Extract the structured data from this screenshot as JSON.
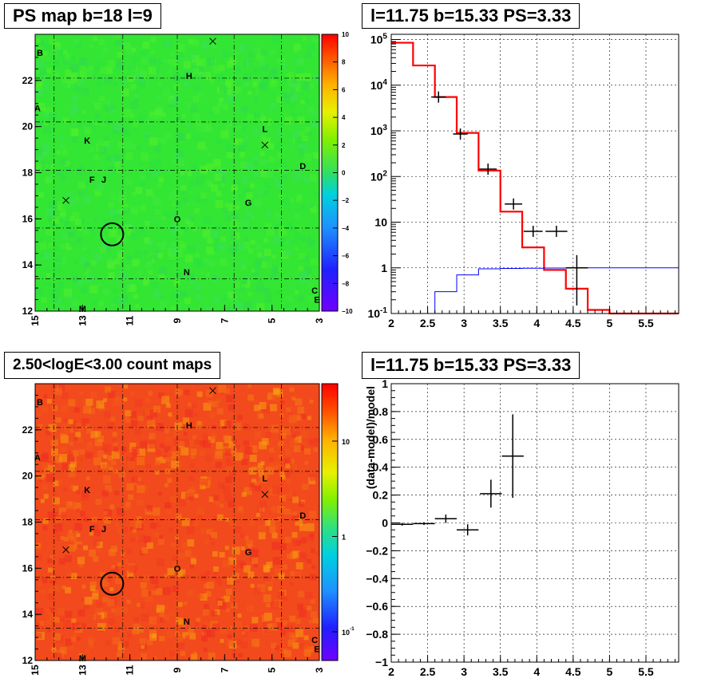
{
  "titles": {
    "ps_map": "PS map b=18 l=9",
    "spectrum": "l=11.75 b=15.33 PS=3.33",
    "count_map": "2.50<logE<3.00 count maps",
    "residual": "l=11.75 b=15.33 PS=3.33"
  },
  "colors": {
    "data": "#000000",
    "model_red": "#ff0000",
    "model_blue": "#0000ff",
    "ps_map_fill": "#33e633",
    "count_map_fill": "#f24a1c"
  },
  "chart_data": [
    {
      "id": "ps_map",
      "type": "heatmap",
      "title": "PS map b=18 l=9",
      "x_ticks": [
        "15",
        "13",
        "11",
        "9",
        "7",
        "5",
        "3"
      ],
      "y_ticks": [
        "12",
        "14",
        "16",
        "18",
        "20",
        "22"
      ],
      "xlim": [
        15,
        3
      ],
      "ylim": [
        12,
        24
      ],
      "colorbar": {
        "scale": "linear",
        "range": [
          -10,
          10
        ],
        "ticks": [
          "10",
          "8",
          "6",
          "4",
          "2",
          "0",
          "−2",
          "−4",
          "−6",
          "−8",
          "−10"
        ]
      },
      "markers": [
        {
          "label": "B",
          "l": 14.8,
          "b": 23.2
        },
        {
          "label": "H",
          "l": 8.5,
          "b": 22.2
        },
        {
          "label": "A",
          "l": 14.9,
          "b": 20.8
        },
        {
          "label": "K",
          "l": 12.8,
          "b": 19.4
        },
        {
          "label": "L",
          "l": 5.3,
          "b": 19.9
        },
        {
          "label": "D",
          "l": 3.7,
          "b": 18.3
        },
        {
          "label": "F",
          "l": 12.6,
          "b": 17.7
        },
        {
          "label": "J",
          "l": 12.1,
          "b": 17.7
        },
        {
          "label": "G",
          "l": 6.0,
          "b": 16.7
        },
        {
          "label": "O",
          "l": 9.0,
          "b": 16.0
        },
        {
          "label": "N",
          "l": 8.6,
          "b": 13.7
        },
        {
          "label": "C",
          "l": 3.2,
          "b": 12.9
        },
        {
          "label": "E",
          "l": 3.1,
          "b": 12.5
        },
        {
          "label": "M",
          "l": 13.0,
          "b": 12.1
        }
      ],
      "crosses": [
        {
          "l": 7.5,
          "b": 23.7
        },
        {
          "l": 5.3,
          "b": 19.2
        },
        {
          "l": 13.7,
          "b": 16.8
        }
      ],
      "source_circle": {
        "l": 11.75,
        "b": 15.33
      }
    },
    {
      "id": "spectrum",
      "type": "line",
      "title": "l=11.75 b=15.33 PS=3.33",
      "xlim": [
        2,
        5.95
      ],
      "x_ticks": [
        "2",
        "2.5",
        "3",
        "3.5",
        "4",
        "4.5",
        "5",
        "5.5"
      ],
      "y_scale": "log",
      "ylim": [
        0.1,
        130000
      ],
      "y_ticks": [
        "10^{-1}",
        "1",
        "10",
        "10^{2}",
        "10^{3}",
        "10^{4}",
        "10^{5}"
      ],
      "bin_edges": [
        2.0,
        2.3,
        2.6,
        2.9,
        3.2,
        3.5,
        3.8,
        4.1,
        4.4,
        4.7,
        5.0,
        5.3,
        5.6,
        5.95
      ],
      "series": [
        {
          "style": "red-step",
          "values": [
            85000,
            27000,
            5500,
            900,
            135,
            17,
            2.8,
            0.9,
            0.35,
            0.12,
            0.1,
            0.1,
            0.1
          ]
        },
        {
          "style": "blue-step",
          "values": [
            0.0,
            0.0,
            0.3,
            0.7,
            0.95,
            0.97,
            0.98,
            0.99,
            0.99,
            1.0,
            1.0,
            1.0,
            1.0
          ]
        }
      ],
      "data_points": [
        {
          "x": 2.65,
          "y": 5500,
          "xerr": 0.1
        },
        {
          "x": 2.95,
          "y": 850,
          "xerr": 0.1
        },
        {
          "x": 3.33,
          "y": 145,
          "xerr": 0.12
        },
        {
          "x": 3.68,
          "y": 25,
          "xerr": 0.12
        },
        {
          "x": 3.95,
          "y": 6.3,
          "xerr": 0.13
        },
        {
          "x": 4.27,
          "y": 6.3,
          "xerr": 0.15
        },
        {
          "x": 4.55,
          "y": 1.0,
          "xerr": 0.15,
          "ylo": 0.15,
          "yhi": 1.9
        }
      ]
    },
    {
      "id": "count_map",
      "type": "heatmap",
      "title": "2.50<logE<3.00 count maps",
      "x_ticks": [
        "15",
        "13",
        "11",
        "9",
        "7",
        "5",
        "3"
      ],
      "y_ticks": [
        "12",
        "14",
        "16",
        "18",
        "20",
        "22"
      ],
      "xlim": [
        15,
        3
      ],
      "ylim": [
        12,
        24
      ],
      "colorbar": {
        "scale": "log",
        "range": [
          0.05,
          40
        ],
        "ticks": [
          "10",
          "1",
          "10^{-1}"
        ]
      },
      "markers": [
        {
          "label": "B",
          "l": 14.8,
          "b": 23.2
        },
        {
          "label": "H",
          "l": 8.5,
          "b": 22.2
        },
        {
          "label": "A",
          "l": 14.9,
          "b": 20.8
        },
        {
          "label": "K",
          "l": 12.8,
          "b": 19.4
        },
        {
          "label": "L",
          "l": 5.3,
          "b": 19.9
        },
        {
          "label": "D",
          "l": 3.7,
          "b": 18.3
        },
        {
          "label": "F",
          "l": 12.6,
          "b": 17.7
        },
        {
          "label": "J",
          "l": 12.1,
          "b": 17.7
        },
        {
          "label": "G",
          "l": 6.0,
          "b": 16.7
        },
        {
          "label": "O",
          "l": 9.0,
          "b": 16.0
        },
        {
          "label": "N",
          "l": 8.6,
          "b": 13.7
        },
        {
          "label": "C",
          "l": 3.2,
          "b": 12.9
        },
        {
          "label": "E",
          "l": 3.1,
          "b": 12.5
        },
        {
          "label": "M",
          "l": 13.0,
          "b": 12.1
        }
      ],
      "crosses": [
        {
          "l": 7.5,
          "b": 23.7
        },
        {
          "l": 5.3,
          "b": 19.2
        },
        {
          "l": 13.7,
          "b": 16.8
        }
      ],
      "source_circle": {
        "l": 11.75,
        "b": 15.33
      }
    },
    {
      "id": "residual",
      "type": "scatter",
      "title": "l=11.75 b=15.33 PS=3.33",
      "ylabel": "(data-model)/model",
      "xlim": [
        2,
        5.95
      ],
      "x_ticks": [
        "2",
        "2.5",
        "3",
        "3.5",
        "4",
        "4.5",
        "5",
        "5.5"
      ],
      "ylim": [
        -1,
        1
      ],
      "y_ticks": [
        "1",
        "0.8",
        "0.6",
        "0.4",
        "0.2",
        "0",
        "−0.2",
        "−0.4",
        "−0.6",
        "−0.8",
        "−1"
      ],
      "data_points": [
        {
          "x": 2.15,
          "y": -0.01,
          "xerr": 0.15,
          "yerr": 0.01
        },
        {
          "x": 2.45,
          "y": -0.005,
          "xerr": 0.15,
          "yerr": 0.01
        },
        {
          "x": 2.75,
          "y": 0.03,
          "xerr": 0.15,
          "yerr": 0.03
        },
        {
          "x": 3.05,
          "y": -0.05,
          "xerr": 0.15,
          "yerr": 0.04
        },
        {
          "x": 3.37,
          "y": 0.21,
          "xerr": 0.15,
          "yerr": 0.1
        },
        {
          "x": 3.67,
          "y": 0.48,
          "xerr": 0.15,
          "yerr": 0.3
        }
      ]
    }
  ]
}
